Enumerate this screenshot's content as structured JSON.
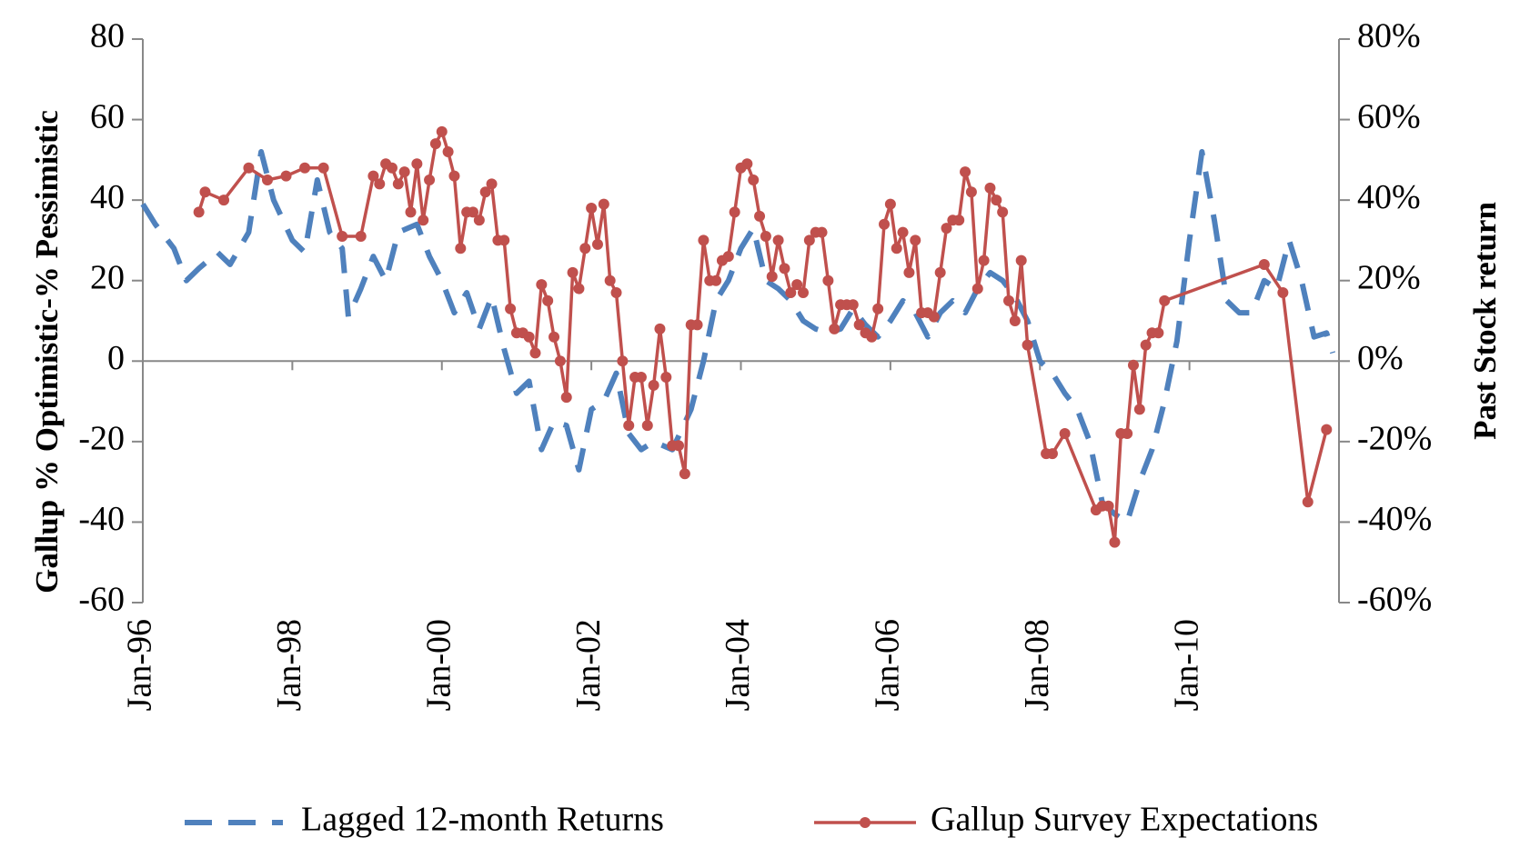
{
  "chart_data": {
    "type": "line",
    "y_title": "Gallup % Optimistic-% Pessimistic",
    "y2_title": "Past Stock return",
    "xlim": [
      "1996-01",
      "2012-01"
    ],
    "xticks": [
      {
        "value": "1996-01",
        "label": "Jan-96"
      },
      {
        "value": "1998-01",
        "label": "Jan-98"
      },
      {
        "value": "2000-01",
        "label": "Jan-00"
      },
      {
        "value": "2002-01",
        "label": "Jan-02"
      },
      {
        "value": "2004-01",
        "label": "Jan-04"
      },
      {
        "value": "2006-01",
        "label": "Jan-06"
      },
      {
        "value": "2008-01",
        "label": "Jan-08"
      },
      {
        "value": "2010-01",
        "label": "Jan-10"
      }
    ],
    "ylim": [
      -60,
      80
    ],
    "yticks": [
      -60,
      -40,
      -20,
      0,
      20,
      40,
      60,
      80
    ],
    "y2lim": [
      -60,
      80
    ],
    "y2ticks": [
      {
        "value": -60,
        "label": "-60%"
      },
      {
        "value": -40,
        "label": "-40%"
      },
      {
        "value": -20,
        "label": "-20%"
      },
      {
        "value": 0,
        "label": "0%"
      },
      {
        "value": 20,
        "label": "20%"
      },
      {
        "value": 40,
        "label": "40%"
      },
      {
        "value": 60,
        "label": "60%"
      },
      {
        "value": 80,
        "label": "80%"
      }
    ],
    "legend": "bottom",
    "series": [
      {
        "name": "Lagged 12-month Returns",
        "color": "#4f81bd",
        "style": "dashed",
        "axis": "y2",
        "x": [
          "1996-01",
          "1996-03",
          "1996-06",
          "1996-08",
          "1996-10",
          "1997-01",
          "1997-03",
          "1997-06",
          "1997-08",
          "1997-10",
          "1998-01",
          "1998-03",
          "1998-05",
          "1998-07",
          "1998-09",
          "1998-10",
          "1998-12",
          "1999-02",
          "1999-04",
          "1999-06",
          "1999-09",
          "1999-11",
          "2000-01",
          "2000-03",
          "2000-05",
          "2000-07",
          "2000-09",
          "2000-11",
          "2001-01",
          "2001-03",
          "2001-05",
          "2001-07",
          "2001-09",
          "2001-11",
          "2002-01",
          "2002-03",
          "2002-05",
          "2002-07",
          "2002-09",
          "2002-11",
          "2003-02",
          "2003-05",
          "2003-07",
          "2003-09",
          "2003-11",
          "2004-01",
          "2004-03",
          "2004-05",
          "2004-07",
          "2004-09",
          "2004-11",
          "2005-01",
          "2005-03",
          "2005-05",
          "2005-07",
          "2005-09",
          "2005-11",
          "2006-01",
          "2006-03",
          "2006-05",
          "2006-07",
          "2006-09",
          "2006-11",
          "2007-01",
          "2007-03",
          "2007-05",
          "2007-07",
          "2007-09",
          "2007-11",
          "2008-01",
          "2008-03",
          "2008-05",
          "2008-07",
          "2008-09",
          "2008-11",
          "2009-01",
          "2009-03",
          "2009-05",
          "2009-07",
          "2009-09",
          "2009-11",
          "2010-01",
          "2010-03",
          "2010-05",
          "2010-07",
          "2010-09",
          "2010-11",
          "2011-01",
          "2011-03",
          "2011-05",
          "2011-07",
          "2011-09",
          "2011-11",
          "2011-12"
        ],
        "values": [
          39,
          34,
          28,
          20,
          23,
          27,
          24,
          32,
          52,
          40,
          30,
          27,
          45,
          32,
          28,
          11,
          18,
          26,
          20,
          32,
          34,
          26,
          20,
          12,
          17,
          8,
          16,
          3,
          -8,
          -5,
          -22,
          -15,
          -16,
          -27,
          -12,
          -10,
          -3,
          -18,
          -22,
          -20,
          -22,
          -12,
          0,
          15,
          20,
          28,
          33,
          20,
          18,
          15,
          10,
          8,
          7,
          8,
          13,
          9,
          6,
          10,
          15,
          12,
          6,
          12,
          15,
          12,
          18,
          22,
          20,
          16,
          10,
          0,
          -3,
          -8,
          -12,
          -20,
          -35,
          -38,
          -40,
          -30,
          -22,
          -10,
          5,
          30,
          52,
          35,
          15,
          12,
          12,
          20,
          18,
          30,
          20,
          6,
          7,
          2
        ]
      },
      {
        "name": "Gallup Survey Expectations",
        "color": "#c0504d",
        "style": "solid",
        "markers": true,
        "x": [
          "1996-10",
          "1996-11",
          "1997-02",
          "1997-06",
          "1997-09",
          "1997-12",
          "1998-03",
          "1998-06",
          "1998-09",
          "1998-12",
          "1999-02",
          "1999-03",
          "1999-04",
          "1999-05",
          "1999-06",
          "1999-07",
          "1999-08",
          "1999-09",
          "1999-10",
          "1999-11",
          "1999-12",
          "2000-01",
          "2000-02",
          "2000-03",
          "2000-04",
          "2000-05",
          "2000-06",
          "2000-07",
          "2000-08",
          "2000-09",
          "2000-10",
          "2000-11",
          "2000-12",
          "2001-01",
          "2001-02",
          "2001-03",
          "2001-04",
          "2001-05",
          "2001-06",
          "2001-07",
          "2001-08",
          "2001-09",
          "2001-10",
          "2001-11",
          "2001-12",
          "2002-01",
          "2002-02",
          "2002-03",
          "2002-04",
          "2002-05",
          "2002-06",
          "2002-07",
          "2002-08",
          "2002-09",
          "2002-10",
          "2002-11",
          "2002-12",
          "2003-01",
          "2003-02",
          "2003-03",
          "2003-04",
          "2003-05",
          "2003-06",
          "2003-07",
          "2003-08",
          "2003-09",
          "2003-10",
          "2003-11",
          "2003-12",
          "2004-01",
          "2004-02",
          "2004-03",
          "2004-04",
          "2004-05",
          "2004-06",
          "2004-07",
          "2004-08",
          "2004-09",
          "2004-10",
          "2004-11",
          "2004-12",
          "2005-01",
          "2005-02",
          "2005-03",
          "2005-04",
          "2005-05",
          "2005-06",
          "2005-07",
          "2005-08",
          "2005-09",
          "2005-10",
          "2005-11",
          "2005-12",
          "2006-01",
          "2006-02",
          "2006-03",
          "2006-04",
          "2006-05",
          "2006-06",
          "2006-07",
          "2006-08",
          "2006-09",
          "2006-10",
          "2006-11",
          "2006-12",
          "2007-01",
          "2007-02",
          "2007-03",
          "2007-04",
          "2007-05",
          "2007-06",
          "2007-07",
          "2007-08",
          "2007-09",
          "2007-10",
          "2007-11",
          "2008-02",
          "2008-03",
          "2008-05",
          "2008-10",
          "2008-11",
          "2008-12",
          "2009-01",
          "2009-02",
          "2009-03",
          "2009-04",
          "2009-05",
          "2009-06",
          "2009-07",
          "2009-08",
          "2009-09",
          "2011-01",
          "2011-04",
          "2011-08",
          "2011-11"
        ],
        "values": [
          37,
          42,
          40,
          48,
          45,
          46,
          48,
          48,
          31,
          31,
          46,
          44,
          49,
          48,
          44,
          47,
          37,
          49,
          35,
          45,
          54,
          57,
          52,
          46,
          28,
          37,
          37,
          35,
          42,
          44,
          30,
          30,
          13,
          7,
          7,
          6,
          2,
          19,
          15,
          6,
          0,
          -9,
          22,
          18,
          28,
          38,
          29,
          39,
          20,
          17,
          0,
          -16,
          -4,
          -4,
          -16,
          -6,
          8,
          -4,
          -21,
          -21,
          -28,
          9,
          9,
          30,
          20,
          20,
          25,
          26,
          37,
          48,
          49,
          45,
          36,
          31,
          21,
          30,
          23,
          17,
          19,
          17,
          30,
          32,
          32,
          20,
          8,
          14,
          14,
          14,
          9,
          7,
          6,
          13,
          34,
          39,
          28,
          32,
          22,
          30,
          12,
          12,
          11,
          22,
          33,
          35,
          35,
          47,
          42,
          18,
          25,
          43,
          40,
          37,
          15,
          10,
          25,
          4,
          -23,
          -23,
          -18,
          -37,
          -36,
          -36,
          -45,
          -18,
          -18,
          -1,
          -12,
          4,
          7,
          7,
          15,
          24,
          17,
          -35,
          -17
        ]
      }
    ]
  }
}
